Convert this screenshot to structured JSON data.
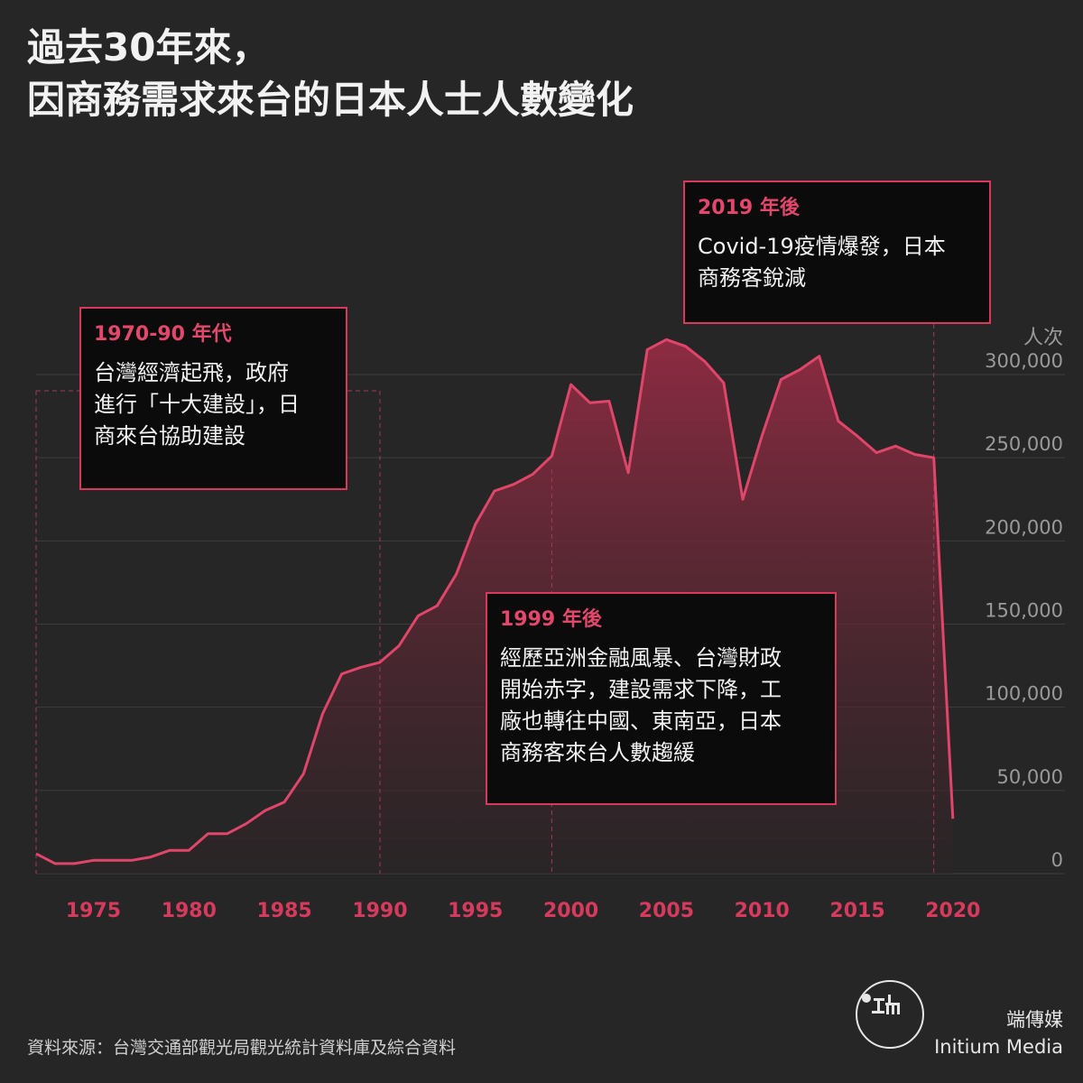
{
  "title_lines": [
    "過去30年來，",
    "因商務需求來台的日本人士人數變化"
  ],
  "annotations": [
    {
      "title": "1970-90 年代",
      "lines": [
        "台灣經濟起飛，政府",
        "進行「十大建設」，日",
        "商來台協助建設"
      ]
    },
    {
      "title": "1999 年後",
      "lines": [
        "經歷亞洲金融風暴、台灣財政",
        "開始赤字，建設需求下降，工",
        "廠也轉往中國、東南亞，日本",
        "商務客來台人數趨緩"
      ]
    },
    {
      "title": "2019 年後",
      "lines": [
        "Covid-19疫情爆發，日本",
        "商務客銳減"
      ]
    }
  ],
  "chart_data": {
    "type": "area",
    "title": "",
    "xlabel": "",
    "ylabel": "人次",
    "xlim": [
      1972,
      2021
    ],
    "ylim": [
      0,
      300000
    ],
    "x_ticks": [
      1975,
      1980,
      1985,
      1990,
      1995,
      2000,
      2005,
      2010,
      2015,
      2020
    ],
    "x_tick_labels": [
      "1975",
      "1980",
      "1985",
      "1990",
      "1995",
      "2000",
      "2005",
      "2010",
      "2015",
      "2020"
    ],
    "y_ticks": [
      0,
      50000,
      100000,
      150000,
      200000,
      250000,
      300000
    ],
    "y_tick_labels": [
      "0",
      "50,000",
      "100,000",
      "150,000",
      "200,000",
      "250,000",
      "300,000"
    ],
    "grid": true,
    "highlight_years": [
      1972,
      1990,
      1999,
      2019
    ],
    "x": [
      1972,
      1973,
      1974,
      1975,
      1976,
      1977,
      1978,
      1979,
      1980,
      1981,
      1982,
      1983,
      1984,
      1985,
      1986,
      1987,
      1988,
      1989,
      1990,
      1991,
      1992,
      1993,
      1994,
      1995,
      1996,
      1997,
      1998,
      1999,
      2000,
      2001,
      2002,
      2003,
      2004,
      2005,
      2006,
      2007,
      2008,
      2009,
      2010,
      2011,
      2012,
      2013,
      2014,
      2015,
      2016,
      2017,
      2018,
      2019,
      2020
    ],
    "y": [
      12000,
      6000,
      6000,
      8000,
      8000,
      8000,
      10000,
      14000,
      14000,
      24000,
      24000,
      30000,
      38000,
      43000,
      60000,
      96000,
      120000,
      124000,
      127000,
      137000,
      155000,
      161000,
      180000,
      210000,
      230000,
      234000,
      240000,
      251000,
      294000,
      283000,
      284000,
      241000,
      315000,
      321000,
      317000,
      308000,
      295000,
      225000,
      263000,
      297000,
      303000,
      311000,
      272000,
      263000,
      253000,
      257000,
      252000,
      250000,
      33000
    ],
    "colors": {
      "line": "#e0456a",
      "fill_top": "#8d2b42",
      "fill_bottom": "#2b2426",
      "axis_labels": "#d63a5d",
      "grid": "#3d3d3d"
    }
  },
  "unit_label": "人次",
  "source": "資料來源：台灣交通部觀光局觀光統計資料庫及綜合資料",
  "brand": {
    "zh": "端傳媒",
    "en": "Initium Media"
  }
}
